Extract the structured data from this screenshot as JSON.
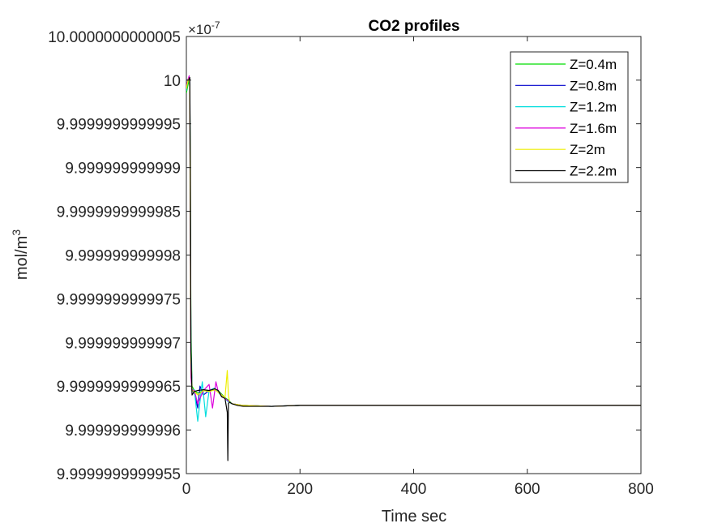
{
  "chart_data": {
    "type": "line",
    "title": "CO2 profiles",
    "xlabel": "Time sec",
    "ylabel_base": "mol/m",
    "ylabel_sup": "3",
    "exponent_prefix": "×10",
    "exponent_sup": "-7",
    "xlim": [
      0,
      800
    ],
    "ylim": [
      9.9999999999955,
      10.0000000000005
    ],
    "grid": false,
    "legend_position": "top-right",
    "x_ticks": [
      0,
      200,
      400,
      600,
      800
    ],
    "x_tick_labels": [
      "0",
      "200",
      "400",
      "600",
      "800"
    ],
    "y_ticks": [
      9.9999999999955,
      9.999999999996,
      9.9999999999965,
      9.999999999997,
      9.9999999999975,
      9.999999999998,
      9.9999999999985,
      9.999999999999,
      9.9999999999995,
      10.0,
      10.0000000000005
    ],
    "y_tick_labels": [
      "9.9999999999955",
      "9.999999999996",
      "9.9999999999965",
      "9.999999999997",
      "9.9999999999975",
      "9.999999999998",
      "9.9999999999985",
      "9.999999999999",
      "9.9999999999995",
      "10",
      "10.0000000000005"
    ],
    "series": [
      {
        "name": "Z=0.4m",
        "color": "#00dd00",
        "x": [
          0,
          3,
          5,
          6,
          7,
          8,
          10,
          14,
          20,
          30,
          40,
          50,
          56,
          62,
          68,
          74,
          80,
          100,
          150,
          200,
          300,
          400,
          500,
          600,
          700,
          800
        ],
        "y": [
          9.99999999999985,
          9.99999999999995,
          10.0,
          9.99999999999995,
          9.9999999999988,
          9.9999999999972,
          9.9999999999965,
          9.99999999999645,
          9.99999999999642,
          9.99999999999645,
          9.99999999999644,
          9.99999999999646,
          9.99999999999645,
          9.99999999999641,
          9.99999999999637,
          9.99999999999634,
          9.9999999999963,
          9.99999999999628,
          9.99999999999627,
          9.99999999999628,
          9.99999999999628,
          9.99999999999628,
          9.99999999999628,
          9.99999999999628,
          9.99999999999628,
          9.99999999999628
        ]
      },
      {
        "name": "Z=0.8m",
        "color": "#0000cc",
        "x": [
          0,
          3,
          5,
          6,
          7,
          8,
          10,
          14,
          20,
          24,
          30,
          40,
          50,
          56,
          62,
          68,
          74,
          80,
          100,
          150,
          200,
          300,
          400,
          500,
          600,
          700,
          800
        ],
        "y": [
          9.9999999999999,
          10.0,
          10.00000000000002,
          9.99999999999995,
          9.9999999999985,
          9.999999999997,
          9.99999999999645,
          9.99999999999643,
          9.99999999999625,
          9.9999999999965,
          9.9999999999964,
          9.99999999999645,
          9.99999999999646,
          9.99999999999644,
          9.9999999999964,
          9.99999999999636,
          9.99999999999633,
          9.9999999999963,
          9.99999999999628,
          9.99999999999627,
          9.99999999999628,
          9.99999999999628,
          9.99999999999628,
          9.99999999999628,
          9.99999999999628,
          9.99999999999628,
          9.99999999999628
        ]
      },
      {
        "name": "Z=1.2m",
        "color": "#00dddd",
        "x": [
          0,
          3,
          5,
          6,
          7,
          8,
          10,
          14,
          20,
          28,
          34,
          40,
          50,
          56,
          62,
          68,
          74,
          80,
          100,
          150,
          200,
          300,
          400,
          500,
          600,
          700,
          800
        ],
        "y": [
          9.99999999999988,
          10.00000000000001,
          10.00000000000003,
          9.99999999999992,
          9.9999999999982,
          9.9999999999969,
          9.99999999999644,
          9.99999999999646,
          9.9999999999961,
          9.99999999999655,
          9.99999999999615,
          9.99999999999645,
          9.99999999999648,
          9.99999999999643,
          9.99999999999639,
          9.99999999999636,
          9.99999999999632,
          9.9999999999963,
          9.99999999999628,
          9.99999999999627,
          9.99999999999628,
          9.99999999999628,
          9.99999999999628,
          9.99999999999628,
          9.99999999999628,
          9.99999999999628,
          9.99999999999628
        ]
      },
      {
        "name": "Z=1.6m",
        "color": "#dd00dd",
        "x": [
          0,
          3,
          5,
          6,
          7,
          8,
          10,
          14,
          20,
          30,
          40,
          46,
          52,
          56,
          62,
          68,
          74,
          80,
          100,
          150,
          200,
          300,
          400,
          500,
          600,
          700,
          800
        ],
        "y": [
          9.99999999999992,
          10.00000000000001,
          10.00000000000005,
          9.9999999999999,
          9.999999999998,
          9.9999999999966,
          9.99999999999646,
          9.99999999999645,
          9.9999999999963,
          9.99999999999645,
          9.99999999999652,
          9.99999999999625,
          9.99999999999655,
          9.99999999999644,
          9.9999999999964,
          9.99999999999636,
          9.99999999999633,
          9.9999999999963,
          9.99999999999628,
          9.99999999999627,
          9.99999999999628,
          9.99999999999628,
          9.99999999999628,
          9.99999999999628,
          9.99999999999628,
          9.99999999999628,
          9.99999999999628
        ]
      },
      {
        "name": "Z=2m",
        "color": "#eeee00",
        "x": [
          0,
          3,
          5,
          6,
          7,
          8,
          10,
          14,
          20,
          30,
          40,
          50,
          56,
          62,
          68,
          72,
          74,
          76,
          80,
          100,
          150,
          200,
          300,
          400,
          500,
          600,
          700,
          800
        ],
        "y": [
          9.9999999999999,
          10.0,
          10.00000000000002,
          9.99999999999992,
          9.9999999999983,
          9.9999999999968,
          9.99999999999645,
          9.99999999999644,
          9.9999999999964,
          9.99999999999645,
          9.99999999999644,
          9.99999999999646,
          9.99999999999643,
          9.9999999999964,
          9.99999999999637,
          9.99999999999668,
          9.9999999999964,
          9.99999999999632,
          9.9999999999963,
          9.99999999999628,
          9.99999999999627,
          9.99999999999628,
          9.99999999999628,
          9.99999999999628,
          9.99999999999628,
          9.99999999999628,
          9.99999999999628,
          9.99999999999628
        ]
      },
      {
        "name": "Z=2.2m",
        "color": "#000000",
        "x": [
          0,
          2,
          4,
          6,
          7,
          8,
          10,
          14,
          20,
          30,
          40,
          50,
          56,
          62,
          68,
          72,
          73,
          74,
          76,
          80,
          90,
          100,
          150,
          200,
          300,
          400,
          500,
          600,
          700,
          800
        ],
        "y": [
          10.0,
          10.0,
          10.0,
          10.00000000000003,
          9.999999999999,
          9.9999999999969,
          9.9999999999964,
          9.99999999999644,
          9.99999999999645,
          9.99999999999646,
          9.99999999999645,
          9.99999999999647,
          9.99999999999645,
          9.99999999999638,
          9.99999999999636,
          9.9999999999962,
          9.99999999999565,
          9.9999999999963,
          9.99999999999632,
          9.9999999999963,
          9.99999999999628,
          9.99999999999627,
          9.99999999999627,
          9.99999999999628,
          9.99999999999628,
          9.99999999999628,
          9.99999999999628,
          9.99999999999628,
          9.99999999999628,
          9.99999999999628
        ]
      }
    ]
  }
}
